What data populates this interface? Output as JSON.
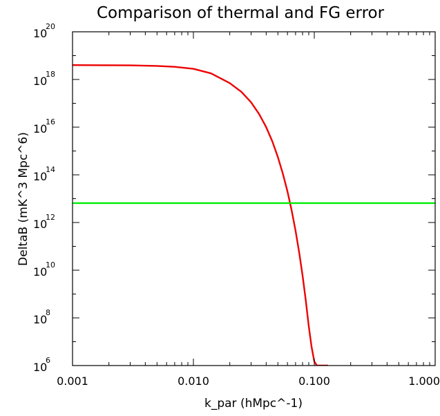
{
  "chart_data": {
    "type": "line",
    "title": "Comparison of thermal and FG error",
    "xlabel": "k_par (hMpc^-1)",
    "ylabel": "DeltaB (mK^3 Mpc^6)",
    "x_scale": "log",
    "y_scale": "log",
    "xlim": [
      0.001,
      1.0
    ],
    "ylim": [
      1000000.0,
      1e+20
    ],
    "grid": false,
    "x_ticks": [
      {
        "value": 0.001,
        "label": "0.001"
      },
      {
        "value": 0.01,
        "label": "0.010"
      },
      {
        "value": 0.1,
        "label": "0.100"
      },
      {
        "value": 1.0,
        "label": "1.000"
      }
    ],
    "y_ticks": [
      {
        "value": 1000000.0,
        "base": "10",
        "exp": "6"
      },
      {
        "value": 100000000.0,
        "base": "10",
        "exp": "8"
      },
      {
        "value": 10000000000.0,
        "base": "10",
        "exp": "10"
      },
      {
        "value": 1000000000000.0,
        "base": "10",
        "exp": "12"
      },
      {
        "value": 100000000000000.0,
        "base": "10",
        "exp": "14"
      },
      {
        "value": 1e+16,
        "base": "10",
        "exp": "16"
      },
      {
        "value": 1e+18,
        "base": "10",
        "exp": "18"
      },
      {
        "value": 1e+20,
        "base": "10",
        "exp": "20"
      }
    ],
    "series": [
      {
        "color": "#ee0000",
        "x": [
          0.001,
          0.002,
          0.003,
          0.005,
          0.007,
          0.01,
          0.014,
          0.02,
          0.025,
          0.03,
          0.035,
          0.04,
          0.045,
          0.05,
          0.055,
          0.06,
          0.065,
          0.07,
          0.075,
          0.08,
          0.085,
          0.09,
          0.095,
          0.1,
          0.105,
          0.11,
          0.115,
          0.12,
          0.125,
          0.13
        ],
        "y": [
          4e+18,
          3.95e+18,
          3.9e+18,
          3.7e+18,
          3.4e+18,
          2.8e+18,
          1.8e+18,
          7e+17,
          3e+17,
          1.1e+17,
          3.5e+16,
          1e+16,
          2500000000000000.0,
          550000000000000.0,
          110000000000000.0,
          20000000000000.0,
          3200000000000.0,
          450000000000.0,
          55000000000.0,
          6000000000.0,
          550000000.0,
          45000000.0,
          6000000.0,
          1500000.0,
          1000000.0,
          1000000.0,
          1000000.0,
          1000000.0,
          1000000.0,
          1000000.0
        ]
      },
      {
        "color": "#00ee00",
        "x": [
          0.001,
          1.0
        ],
        "y": [
          6500000000000.0,
          6500000000000.0
        ]
      }
    ]
  }
}
